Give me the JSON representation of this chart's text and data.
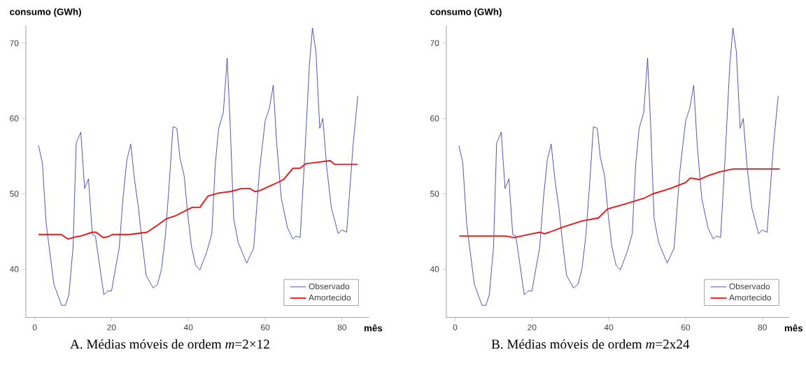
{
  "chart_data": [
    {
      "type": "line",
      "title": "A. Médias móveis de ordem *m*=2×12",
      "xlabel": "mês",
      "ylabel": "consumo (GWh)",
      "xlim": [
        -2.3,
        87
      ],
      "ylim": [
        33.6,
        72.3
      ],
      "xticks": [
        0,
        20,
        40,
        60,
        80
      ],
      "yticks": [
        40,
        50,
        60,
        70
      ],
      "legend": "bottom right",
      "series": [
        {
          "name": "Observado",
          "color": "#2a2aa8",
          "x": [
            1,
            2,
            3,
            5,
            7,
            8,
            8.9,
            10,
            10.8,
            12,
            13,
            14,
            15,
            15.8,
            18,
            19,
            20,
            21,
            22,
            23,
            24,
            25,
            26,
            27,
            27.8,
            29,
            30.8,
            32,
            33,
            34,
            35,
            36,
            37,
            37.8,
            38.9,
            39.9,
            40.8,
            41.9,
            43,
            44.8,
            46.1,
            47,
            47.9,
            49.1,
            50.1,
            50.9,
            51.8,
            53,
            55.2,
            57,
            58.5,
            60,
            61.1,
            62.1,
            63,
            64.2,
            65.8,
            67.2,
            68,
            69.1,
            70.3,
            71.5,
            72.3,
            73.2,
            74.2,
            75,
            76,
            77.2,
            79,
            79.9,
            81.2,
            82.9,
            84.1
          ],
          "values": [
            56.4,
            54.1,
            46,
            38,
            35.2,
            35.2,
            36.6,
            43,
            56.7,
            58.2,
            50.7,
            52.0,
            44.6,
            44.4,
            36.6,
            37.1,
            37.1,
            40,
            42.8,
            49.5,
            54.5,
            56.6,
            51.8,
            48.2,
            44.3,
            39.2,
            37.5,
            38,
            40,
            44.3,
            51.2,
            58.9,
            58.7,
            54.8,
            52.4,
            47,
            43,
            40.5,
            39.9,
            42.3,
            44.7,
            53.9,
            58.7,
            60.8,
            68,
            59,
            46.7,
            43.5,
            40.8,
            42.8,
            53,
            59.7,
            61.4,
            64.4,
            56.6,
            49.4,
            45.5,
            44,
            44.4,
            44.2,
            55.1,
            67.1,
            72,
            68.9,
            58.7,
            60,
            53.6,
            48.2,
            44.7,
            45.2,
            44.9,
            56.6,
            63
          ]
        },
        {
          "name": "Amortecido",
          "color": "#ee1111",
          "x": [
            1,
            6.9,
            8.7,
            10.8,
            12,
            15,
            16,
            17.8,
            19,
            20.2,
            24.7,
            29.2,
            31.9,
            34.3,
            36.7,
            41,
            43,
            45.1,
            47.9,
            50.9,
            53.9,
            56.1,
            57.3,
            58.5,
            62.4,
            64.8,
            67.2,
            69.1,
            70.6,
            73.9,
            76.9,
            78.1,
            84.1
          ],
          "values": [
            44.6,
            44.6,
            44.0,
            44.3,
            44.4,
            44.9,
            44.9,
            44.2,
            44.3,
            44.6,
            44.6,
            44.9,
            45.8,
            46.7,
            47.1,
            48.2,
            48.2,
            49.7,
            50.1,
            50.3,
            50.7,
            50.7,
            50.3,
            50.4,
            51.3,
            51.9,
            53.4,
            53.4,
            54,
            54.2,
            54.4,
            53.9,
            53.9
          ]
        }
      ]
    },
    {
      "type": "line",
      "title": "B. Médias móveis de ordem *m*=2x24",
      "xlabel": "mês",
      "ylabel": "consumo (GWh)",
      "xlim": [
        -2.3,
        87
      ],
      "ylim": [
        33.6,
        72.3
      ],
      "xticks": [
        0,
        20,
        40,
        60,
        80
      ],
      "yticks": [
        40,
        50,
        60,
        70
      ],
      "legend": "bottom right",
      "series": [
        {
          "name": "Observado",
          "color": "#2a2aa8",
          "x": [
            1,
            2,
            3,
            5,
            7,
            8,
            8.9,
            10,
            10.8,
            12,
            13,
            14,
            15,
            15.8,
            18,
            19,
            20,
            21,
            22,
            23,
            24,
            25,
            26,
            27,
            27.8,
            29,
            30.8,
            32,
            33,
            34,
            35,
            36,
            37,
            37.8,
            38.9,
            39.9,
            40.8,
            41.9,
            43,
            44.8,
            46.1,
            47,
            47.9,
            49.1,
            50.1,
            50.9,
            51.8,
            53,
            55.2,
            57,
            58.5,
            60,
            61.1,
            62.1,
            63,
            64.2,
            65.8,
            67.2,
            68,
            69.1,
            70.3,
            71.5,
            72.3,
            73.2,
            74.2,
            75,
            76,
            77.2,
            79,
            79.9,
            81.2,
            82.9,
            84.1
          ],
          "values": [
            56.4,
            54.1,
            46,
            38,
            35.2,
            35.2,
            36.6,
            43,
            56.7,
            58.2,
            50.7,
            52.0,
            44.6,
            44.4,
            36.6,
            37.1,
            37.1,
            40,
            42.8,
            49.5,
            54.5,
            56.6,
            51.8,
            48.2,
            44.3,
            39.2,
            37.5,
            38,
            40,
            44.3,
            51.2,
            58.9,
            58.7,
            54.8,
            52.4,
            47,
            43,
            40.5,
            39.9,
            42.3,
            44.7,
            53.9,
            58.7,
            60.8,
            68,
            59,
            46.7,
            43.5,
            40.8,
            42.8,
            53,
            59.7,
            61.4,
            64.4,
            56.6,
            49.4,
            45.5,
            44,
            44.4,
            44.2,
            55.1,
            67.1,
            72,
            68.9,
            58.7,
            60,
            53.6,
            48.2,
            44.7,
            45.2,
            44.9,
            56.6,
            63
          ]
        },
        {
          "name": "Amortecido",
          "color": "#ee1111",
          "x": [
            1.1,
            13,
            15.4,
            17.3,
            20,
            22.1,
            23.3,
            24.5,
            28.2,
            33,
            37.3,
            39.7,
            43.9,
            49.1,
            51.5,
            56,
            60,
            61.2,
            63.6,
            65.8,
            68.8,
            72.4,
            84.5
          ],
          "values": [
            44.4,
            44.4,
            44.2,
            44.4,
            44.7,
            44.9,
            44.7,
            44.9,
            45.6,
            46.4,
            46.8,
            48.0,
            48.6,
            49.4,
            50,
            50.7,
            51.5,
            52.1,
            51.9,
            52.4,
            52.9,
            53.3,
            53.3
          ]
        }
      ]
    }
  ]
}
